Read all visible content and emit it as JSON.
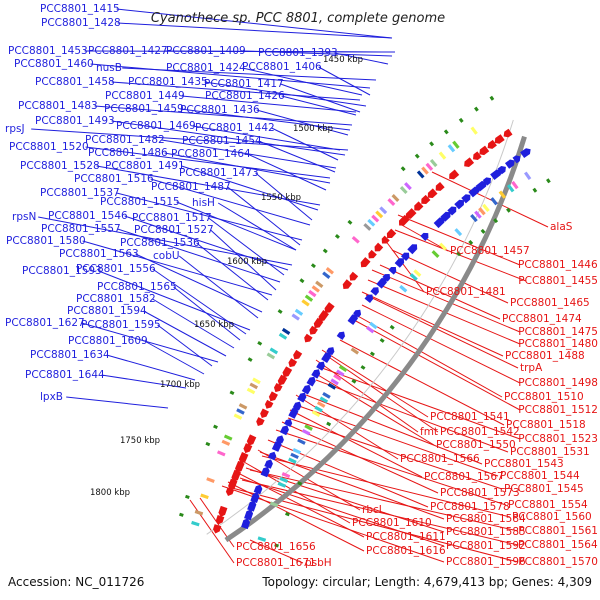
{
  "title": "Cyanothece sp. PCC 8801, complete genome",
  "accession": "Accession: NC_011726",
  "summary": "Topology: circular; Length: 4,679,413 bp; Genes: 4,309",
  "colors": {
    "forward": "#1f1fdd",
    "reverse": "#e61515",
    "backbone": "#8a8a8a",
    "tick": "#2a8a1a"
  },
  "position_ticks": [
    "1450 kbp",
    "1500 kbp",
    "1550 kbp",
    "1600 kbp",
    "1650 kbp",
    "1700 kbp",
    "1750 kbp",
    "1800 kbp"
  ],
  "forward_genes": [
    "PCC8801_1415",
    "PCC8801_1428",
    "PCC8801_1453",
    "PCC8801_1427",
    "PCC8801_1409",
    "PCC8801_1393",
    "PCC8801_1460",
    "nusB",
    "PCC8801_1424",
    "PCC8801_1406",
    "PCC8801_1458",
    "PCC8801_1435",
    "PCC8801_1417",
    "PCC8801_1449",
    "PCC8801_1426",
    "PCC8801_1483",
    "PCC8801_1459",
    "PCC8801_1436",
    "rpsJ",
    "PCC8801_1493",
    "PCC8801_1469",
    "PCC8801_1442",
    "PCC8801_1482",
    "PCC8801_1454",
    "PCC8801_1520",
    "PCC8801_1486",
    "PCC8801_1464",
    "PCC8801_1528",
    "PCC8801_1491",
    "PCC8801_1473",
    "PCC8801_1516",
    "PCC8801_1537",
    "PCC8801_1487",
    "PCC8801_1515",
    "hisH",
    "rpsN",
    "PCC8801_1546",
    "PCC8801_1517",
    "PCC8801_1557",
    "PCC8801_1527",
    "PCC8801_1580",
    "PCC8801_1536",
    "PCC8801_1563",
    "cobU",
    "PCC8801_1593",
    "PCC8801_1556",
    "PCC8801_1565",
    "PCC8801_1582",
    "PCC8801_1594",
    "PCC8801_1627",
    "PCC8801_1595",
    "PCC8801_1609",
    "PCC8801_1634",
    "PCC8801_1644",
    "lpxB"
  ],
  "reverse_genes": [
    "alaS",
    "PCC8801_1457",
    "PCC8801_1446",
    "PCC8801_1455",
    "PCC8801_1481",
    "PCC8801_1465",
    "PCC8801_1474",
    "PCC8801_1475",
    "PCC8801_1480",
    "PCC8801_1488",
    "trpA",
    "PCC8801_1498",
    "PCC8801_1510",
    "PCC8801_1512",
    "PCC8801_1541",
    "PCC8801_1518",
    "fmt",
    "PCC8801_1542",
    "PCC8801_1523",
    "PCC8801_1550",
    "PCC8801_1531",
    "PCC8801_1566",
    "PCC8801_1543",
    "PCC8801_1544",
    "PCC8801_1567",
    "PCC8801_1545",
    "PCC8801_1573",
    "PCC8801_1554",
    "PCC8801_1578",
    "rbcL",
    "PCC8801_1584",
    "PCC8801_1560",
    "PCC8801_1610",
    "PCC8801_1585",
    "PCC8801_1561",
    "PCC8801_1611",
    "PCC8801_1592",
    "PCC8801_1564",
    "PCC8801_1616",
    "PCC8801_1596",
    "PCC8801_1570",
    "PCC8801_1656",
    "PCC8801_1671",
    "psbH"
  ]
}
